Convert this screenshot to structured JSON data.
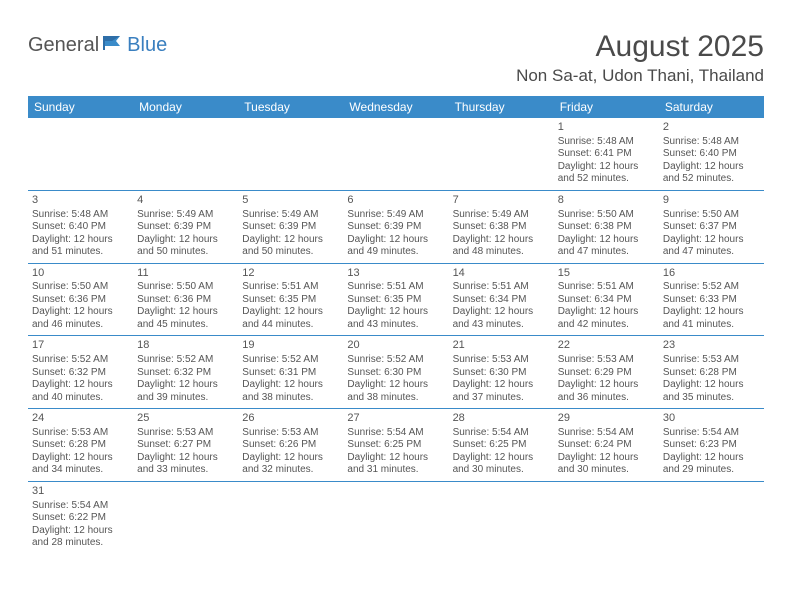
{
  "brand": {
    "part1": "General",
    "part2": "Blue"
  },
  "title": "August 2025",
  "location": "Non Sa-at, Udon Thani, Thailand",
  "colors": {
    "header_bg": "#3a8bc9",
    "header_text": "#ffffff",
    "rule": "#3a8bc9",
    "body_text": "#555555",
    "brand_blue": "#3a7fbf"
  },
  "weekdays": [
    "Sunday",
    "Monday",
    "Tuesday",
    "Wednesday",
    "Thursday",
    "Friday",
    "Saturday"
  ],
  "weeks": [
    [
      null,
      null,
      null,
      null,
      null,
      {
        "d": "1",
        "sr": "Sunrise: 5:48 AM",
        "ss": "Sunset: 6:41 PM",
        "dl1": "Daylight: 12 hours",
        "dl2": "and 52 minutes."
      },
      {
        "d": "2",
        "sr": "Sunrise: 5:48 AM",
        "ss": "Sunset: 6:40 PM",
        "dl1": "Daylight: 12 hours",
        "dl2": "and 52 minutes."
      }
    ],
    [
      {
        "d": "3",
        "sr": "Sunrise: 5:48 AM",
        "ss": "Sunset: 6:40 PM",
        "dl1": "Daylight: 12 hours",
        "dl2": "and 51 minutes."
      },
      {
        "d": "4",
        "sr": "Sunrise: 5:49 AM",
        "ss": "Sunset: 6:39 PM",
        "dl1": "Daylight: 12 hours",
        "dl2": "and 50 minutes."
      },
      {
        "d": "5",
        "sr": "Sunrise: 5:49 AM",
        "ss": "Sunset: 6:39 PM",
        "dl1": "Daylight: 12 hours",
        "dl2": "and 50 minutes."
      },
      {
        "d": "6",
        "sr": "Sunrise: 5:49 AM",
        "ss": "Sunset: 6:39 PM",
        "dl1": "Daylight: 12 hours",
        "dl2": "and 49 minutes."
      },
      {
        "d": "7",
        "sr": "Sunrise: 5:49 AM",
        "ss": "Sunset: 6:38 PM",
        "dl1": "Daylight: 12 hours",
        "dl2": "and 48 minutes."
      },
      {
        "d": "8",
        "sr": "Sunrise: 5:50 AM",
        "ss": "Sunset: 6:38 PM",
        "dl1": "Daylight: 12 hours",
        "dl2": "and 47 minutes."
      },
      {
        "d": "9",
        "sr": "Sunrise: 5:50 AM",
        "ss": "Sunset: 6:37 PM",
        "dl1": "Daylight: 12 hours",
        "dl2": "and 47 minutes."
      }
    ],
    [
      {
        "d": "10",
        "sr": "Sunrise: 5:50 AM",
        "ss": "Sunset: 6:36 PM",
        "dl1": "Daylight: 12 hours",
        "dl2": "and 46 minutes."
      },
      {
        "d": "11",
        "sr": "Sunrise: 5:50 AM",
        "ss": "Sunset: 6:36 PM",
        "dl1": "Daylight: 12 hours",
        "dl2": "and 45 minutes."
      },
      {
        "d": "12",
        "sr": "Sunrise: 5:51 AM",
        "ss": "Sunset: 6:35 PM",
        "dl1": "Daylight: 12 hours",
        "dl2": "and 44 minutes."
      },
      {
        "d": "13",
        "sr": "Sunrise: 5:51 AM",
        "ss": "Sunset: 6:35 PM",
        "dl1": "Daylight: 12 hours",
        "dl2": "and 43 minutes."
      },
      {
        "d": "14",
        "sr": "Sunrise: 5:51 AM",
        "ss": "Sunset: 6:34 PM",
        "dl1": "Daylight: 12 hours",
        "dl2": "and 43 minutes."
      },
      {
        "d": "15",
        "sr": "Sunrise: 5:51 AM",
        "ss": "Sunset: 6:34 PM",
        "dl1": "Daylight: 12 hours",
        "dl2": "and 42 minutes."
      },
      {
        "d": "16",
        "sr": "Sunrise: 5:52 AM",
        "ss": "Sunset: 6:33 PM",
        "dl1": "Daylight: 12 hours",
        "dl2": "and 41 minutes."
      }
    ],
    [
      {
        "d": "17",
        "sr": "Sunrise: 5:52 AM",
        "ss": "Sunset: 6:32 PM",
        "dl1": "Daylight: 12 hours",
        "dl2": "and 40 minutes."
      },
      {
        "d": "18",
        "sr": "Sunrise: 5:52 AM",
        "ss": "Sunset: 6:32 PM",
        "dl1": "Daylight: 12 hours",
        "dl2": "and 39 minutes."
      },
      {
        "d": "19",
        "sr": "Sunrise: 5:52 AM",
        "ss": "Sunset: 6:31 PM",
        "dl1": "Daylight: 12 hours",
        "dl2": "and 38 minutes."
      },
      {
        "d": "20",
        "sr": "Sunrise: 5:52 AM",
        "ss": "Sunset: 6:30 PM",
        "dl1": "Daylight: 12 hours",
        "dl2": "and 38 minutes."
      },
      {
        "d": "21",
        "sr": "Sunrise: 5:53 AM",
        "ss": "Sunset: 6:30 PM",
        "dl1": "Daylight: 12 hours",
        "dl2": "and 37 minutes."
      },
      {
        "d": "22",
        "sr": "Sunrise: 5:53 AM",
        "ss": "Sunset: 6:29 PM",
        "dl1": "Daylight: 12 hours",
        "dl2": "and 36 minutes."
      },
      {
        "d": "23",
        "sr": "Sunrise: 5:53 AM",
        "ss": "Sunset: 6:28 PM",
        "dl1": "Daylight: 12 hours",
        "dl2": "and 35 minutes."
      }
    ],
    [
      {
        "d": "24",
        "sr": "Sunrise: 5:53 AM",
        "ss": "Sunset: 6:28 PM",
        "dl1": "Daylight: 12 hours",
        "dl2": "and 34 minutes."
      },
      {
        "d": "25",
        "sr": "Sunrise: 5:53 AM",
        "ss": "Sunset: 6:27 PM",
        "dl1": "Daylight: 12 hours",
        "dl2": "and 33 minutes."
      },
      {
        "d": "26",
        "sr": "Sunrise: 5:53 AM",
        "ss": "Sunset: 6:26 PM",
        "dl1": "Daylight: 12 hours",
        "dl2": "and 32 minutes."
      },
      {
        "d": "27",
        "sr": "Sunrise: 5:54 AM",
        "ss": "Sunset: 6:25 PM",
        "dl1": "Daylight: 12 hours",
        "dl2": "and 31 minutes."
      },
      {
        "d": "28",
        "sr": "Sunrise: 5:54 AM",
        "ss": "Sunset: 6:25 PM",
        "dl1": "Daylight: 12 hours",
        "dl2": "and 30 minutes."
      },
      {
        "d": "29",
        "sr": "Sunrise: 5:54 AM",
        "ss": "Sunset: 6:24 PM",
        "dl1": "Daylight: 12 hours",
        "dl2": "and 30 minutes."
      },
      {
        "d": "30",
        "sr": "Sunrise: 5:54 AM",
        "ss": "Sunset: 6:23 PM",
        "dl1": "Daylight: 12 hours",
        "dl2": "and 29 minutes."
      }
    ],
    [
      {
        "d": "31",
        "sr": "Sunrise: 5:54 AM",
        "ss": "Sunset: 6:22 PM",
        "dl1": "Daylight: 12 hours",
        "dl2": "and 28 minutes."
      },
      null,
      null,
      null,
      null,
      null,
      null
    ]
  ]
}
